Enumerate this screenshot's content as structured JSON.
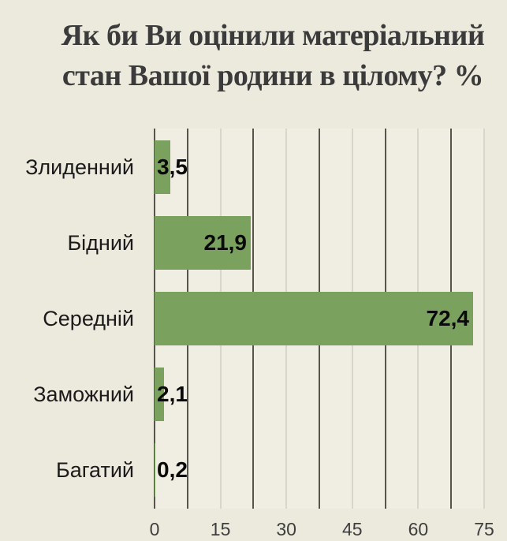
{
  "title": {
    "lines": [
      "Як би Ви оцінили матеріальний",
      "стан Вашої родини в цілому? %"
    ]
  },
  "chart_data": {
    "type": "bar",
    "orientation": "horizontal",
    "title": "Як би Ви оцінили матеріальний стан Вашої родини в цілому? %",
    "categories": [
      "Злиденний",
      "Бідний",
      "Середній",
      "Заможний",
      "Багатий"
    ],
    "values": [
      3.5,
      21.9,
      72.4,
      2.1,
      0.2
    ],
    "value_labels": [
      "3,5",
      "21,9",
      "72,4",
      "2,1",
      "0,2"
    ],
    "value_label_inside": [
      false,
      true,
      true,
      false,
      false
    ],
    "xlabel": "",
    "ylabel": "",
    "xlim": [
      0,
      75
    ],
    "x_ticks": [
      0,
      15,
      30,
      45,
      60,
      75
    ],
    "x_tick_labels": [
      "0",
      "15",
      "30",
      "45",
      "60",
      "75"
    ],
    "grid": true,
    "gridlines": [
      {
        "v": 0,
        "shade": "dark"
      },
      {
        "v": 7.5,
        "shade": "dark"
      },
      {
        "v": 15,
        "shade": "light"
      },
      {
        "v": 22.5,
        "shade": "dark"
      },
      {
        "v": 30,
        "shade": "light"
      },
      {
        "v": 37.5,
        "shade": "dark"
      },
      {
        "v": 45,
        "shade": "light"
      },
      {
        "v": 52.5,
        "shade": "dark"
      },
      {
        "v": 60,
        "shade": "light"
      },
      {
        "v": 67.5,
        "shade": "dark"
      },
      {
        "v": 75,
        "shade": "light"
      }
    ],
    "legend": null,
    "colors": {
      "background": "#ece9dd",
      "plot_background": "#f0ede3",
      "bar": "#7aa25e",
      "grid_dark": "#57554b",
      "grid_light": "#d8d5ca",
      "title": "#3b3b3b",
      "category_label": "#1b1b1b",
      "value_label": "#0a0a0a",
      "tick_label": "#3e3e3e"
    }
  }
}
